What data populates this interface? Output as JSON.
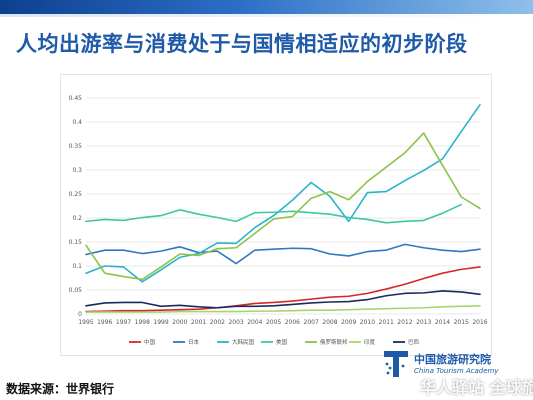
{
  "slide": {
    "title": "人均出游率与消费处于与国情相适应的初步阶段",
    "source": "数据来源：世界银行",
    "logo_cn": "中国旅游研究院",
    "logo_en": "China Tourism Academy",
    "watermark": "华人驿站  全球旅游"
  },
  "chart_data": {
    "type": "line",
    "x": [
      "1995",
      "1996",
      "1997",
      "1998",
      "1999",
      "2000",
      "2001",
      "2002",
      "2003",
      "2004",
      "2005",
      "2006",
      "2007",
      "2008",
      "2009",
      "2010",
      "2011",
      "2012",
      "2013",
      "2014",
      "2015",
      "2016"
    ],
    "ylim": [
      0,
      0.45
    ],
    "yticks": [
      0,
      0.05,
      0.1,
      0.15,
      0.2,
      0.25,
      0.3,
      0.35,
      0.4,
      0.45
    ],
    "grid": true,
    "legend": "bottom",
    "series": [
      {
        "name": "中国",
        "color": "#d62728",
        "values": [
          0.005,
          0.006,
          0.007,
          0.007,
          0.008,
          0.009,
          0.01,
          0.013,
          0.017,
          0.022,
          0.024,
          0.027,
          0.031,
          0.035,
          0.037,
          0.043,
          0.052,
          0.062,
          0.074,
          0.085,
          0.093,
          0.098
        ]
      },
      {
        "name": "日本",
        "color": "#2e78c2",
        "values": [
          0.124,
          0.133,
          0.133,
          0.126,
          0.131,
          0.14,
          0.128,
          0.131,
          0.105,
          0.133,
          0.135,
          0.137,
          0.136,
          0.125,
          0.121,
          0.13,
          0.133,
          0.145,
          0.138,
          0.133,
          0.13,
          0.135
        ]
      },
      {
        "name": "大韩民国",
        "color": "#2ab3cf",
        "values": [
          0.085,
          0.1,
          0.098,
          0.067,
          0.092,
          0.118,
          0.126,
          0.148,
          0.147,
          0.18,
          0.205,
          0.237,
          0.274,
          0.245,
          0.193,
          0.253,
          0.255,
          0.278,
          0.299,
          0.323,
          0.38,
          0.436
        ]
      },
      {
        "name": "美国",
        "color": "#3ec6a6",
        "values": [
          0.193,
          0.197,
          0.195,
          0.201,
          0.205,
          0.217,
          0.208,
          0.201,
          0.193,
          0.211,
          0.212,
          0.214,
          0.211,
          0.208,
          0.201,
          0.197,
          0.19,
          0.193,
          0.195,
          0.21,
          0.228,
          null
        ]
      },
      {
        "name": "俄罗斯联邦",
        "color": "#8bc34a",
        "values": [
          0.143,
          0.085,
          0.078,
          0.072,
          0.098,
          0.125,
          0.122,
          0.136,
          0.138,
          0.168,
          0.198,
          0.203,
          0.241,
          0.255,
          0.238,
          0.276,
          0.306,
          0.336,
          0.377,
          0.31,
          0.244,
          0.22
        ]
      },
      {
        "name": "印度",
        "color": "#a5d66b",
        "values": [
          0.004,
          0.004,
          0.004,
          0.004,
          0.004,
          0.005,
          0.005,
          0.005,
          0.005,
          0.006,
          0.006,
          0.007,
          0.008,
          0.008,
          0.009,
          0.01,
          0.011,
          0.012,
          0.013,
          0.015,
          0.016,
          0.017
        ]
      },
      {
        "name": "巴西",
        "color": "#1a2a5c",
        "values": [
          0.017,
          0.023,
          0.024,
          0.024,
          0.016,
          0.018,
          0.015,
          0.013,
          0.016,
          0.016,
          0.017,
          0.02,
          0.023,
          0.025,
          0.026,
          0.03,
          0.038,
          0.043,
          0.044,
          0.048,
          0.046,
          0.041
        ]
      }
    ]
  }
}
